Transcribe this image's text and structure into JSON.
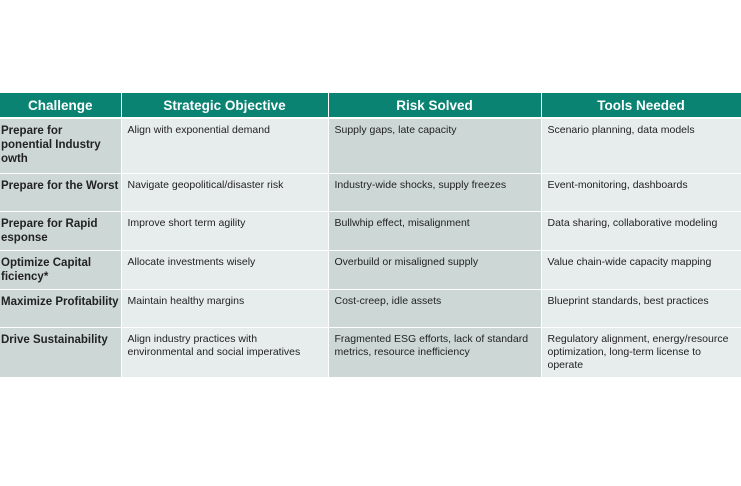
{
  "table": {
    "headers": [
      "Challenge",
      "Strategic Objective",
      "Risk Solved",
      "Tools Needed"
    ],
    "rows": [
      {
        "challenge": [
          "Prepare for",
          "ponential Industry",
          "owth"
        ],
        "objective": "Align with exponential demand",
        "risk": "Supply gaps, late capacity",
        "tools": "Scenario planning, data models"
      },
      {
        "challenge": [
          "Prepare for the Worst"
        ],
        "objective": "Navigate geopolitical/disaster risk",
        "risk": "Industry-wide shocks, supply freezes",
        "tools": "Event-monitoring, dashboards"
      },
      {
        "challenge": [
          "Prepare for Rapid",
          "esponse"
        ],
        "objective": "Improve short term agility",
        "risk": "Bullwhip effect, misalignment",
        "tools": "Data sharing, collaborative modeling"
      },
      {
        "challenge": [
          "Optimize Capital",
          "ficiency*"
        ],
        "objective": "Allocate investments wisely",
        "risk": "Overbuild or misaligned supply",
        "tools": "Value chain-wide capacity mapping"
      },
      {
        "challenge": [
          "Maximize Profitability"
        ],
        "objective": "Maintain healthy margins",
        "risk": "Cost-creep, idle assets",
        "tools": "Blueprint standards, best practices"
      },
      {
        "challenge": [
          "Drive Sustainability"
        ],
        "objective": "Align industry practices with environmental and social imperatives",
        "risk": "Fragmented ESG efforts, lack of standard metrics, resource inefficiency",
        "tools": "Regulatory alignment, energy/resource optimization, long-term license to operate"
      }
    ]
  },
  "colors": {
    "header": "#0a8373",
    "dark_cell": "#cdd8d6",
    "light_cell": "#e7edec"
  }
}
